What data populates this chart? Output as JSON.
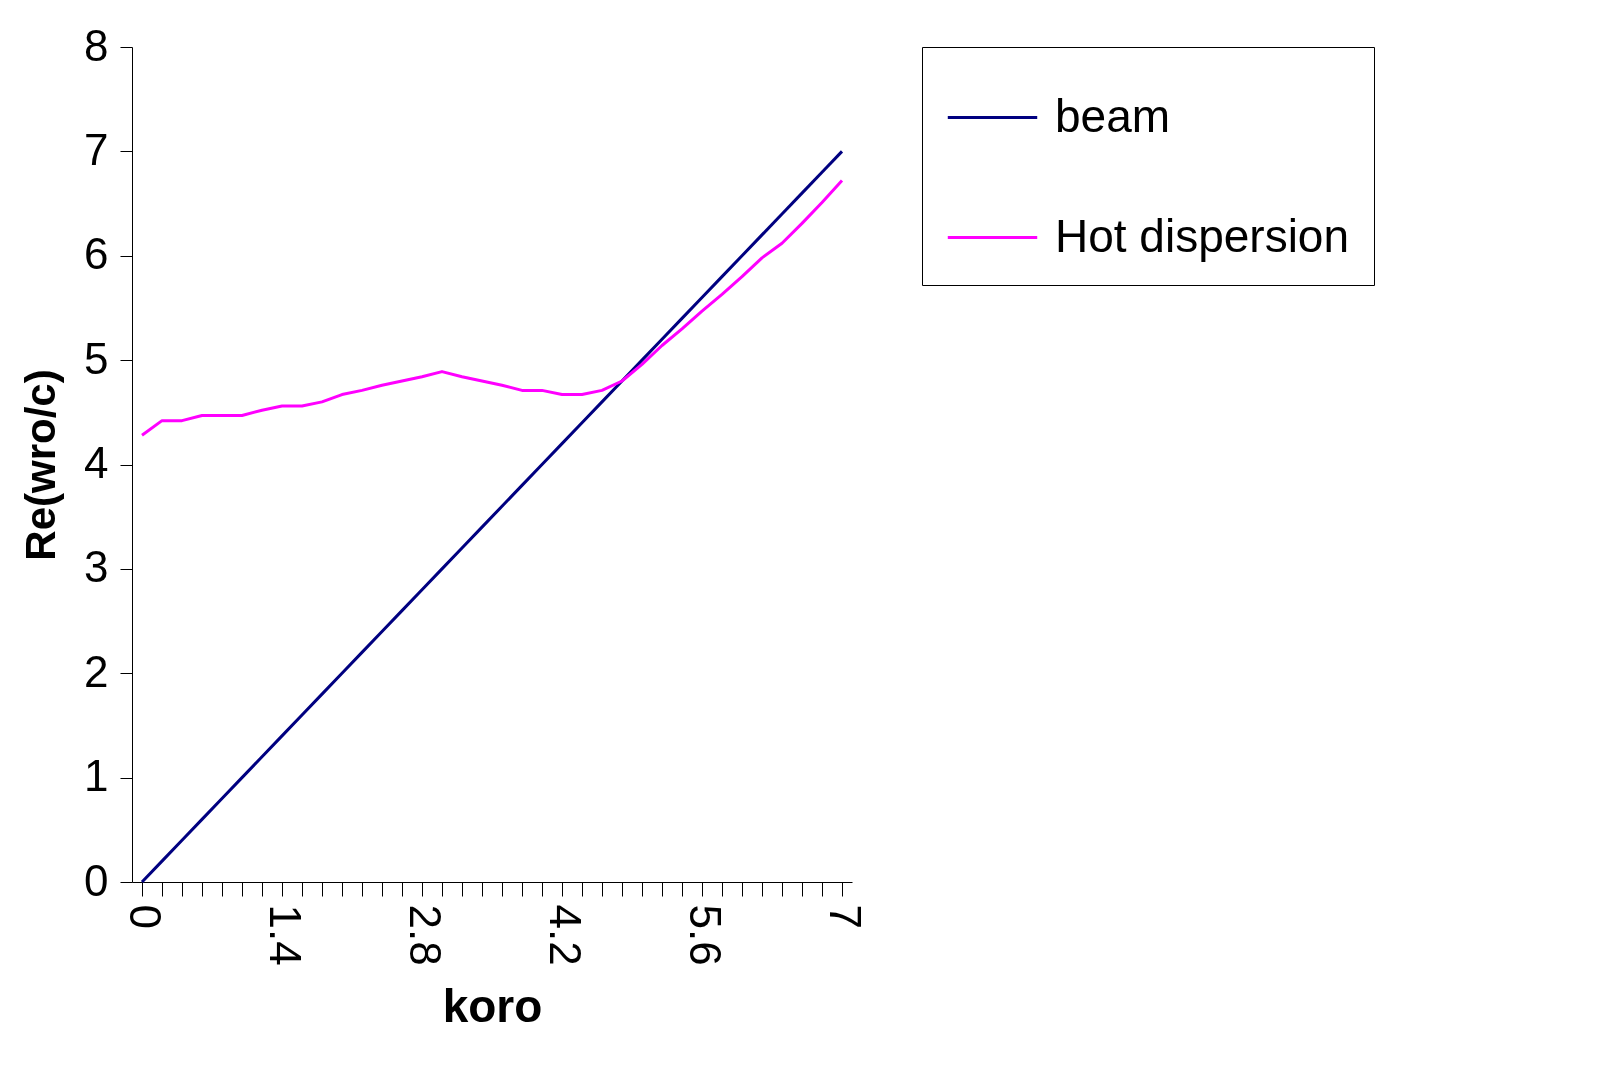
{
  "chart_data": {
    "type": "line",
    "xlabel": "koro",
    "ylabel": "Re(wro/c)",
    "categories": [
      "0",
      null,
      null,
      null,
      null,
      null,
      null,
      "1.4",
      null,
      null,
      null,
      null,
      null,
      null,
      "2.8",
      null,
      null,
      null,
      null,
      null,
      null,
      "4.2",
      null,
      null,
      null,
      null,
      null,
      null,
      "5.6",
      null,
      null,
      null,
      null,
      null,
      null,
      "7"
    ],
    "series": [
      {
        "name": "beam",
        "color": "#000080",
        "values": [
          0,
          0.2,
          0.4,
          0.6,
          0.8,
          1.0,
          1.2,
          1.4,
          1.6,
          1.8,
          2.0,
          2.2,
          2.4,
          2.6,
          2.8,
          3.0,
          3.2,
          3.4,
          3.6,
          3.8,
          4.0,
          4.2,
          4.4,
          4.6,
          4.8,
          5.0,
          5.2,
          5.4,
          5.6,
          5.8,
          6.0,
          6.2,
          6.4,
          6.6,
          6.8,
          7.0
        ]
      },
      {
        "name": "Hot dispersion",
        "color": "#ff00ff",
        "values": [
          4.28,
          4.42,
          4.42,
          4.47,
          4.47,
          4.47,
          4.52,
          4.56,
          4.56,
          4.6,
          4.67,
          4.71,
          4.76,
          4.8,
          4.84,
          4.89,
          4.84,
          4.8,
          4.76,
          4.71,
          4.71,
          4.67,
          4.67,
          4.71,
          4.8,
          4.96,
          5.14,
          5.3,
          5.47,
          5.63,
          5.8,
          5.98,
          6.12,
          6.31,
          6.51,
          6.72
        ]
      }
    ],
    "ylim": [
      0,
      8
    ],
    "yticks": [
      0,
      1,
      2,
      3,
      4,
      5,
      6,
      7,
      8
    ],
    "grid": false,
    "legend": "right",
    "marker": "none",
    "line_style": "solid"
  }
}
